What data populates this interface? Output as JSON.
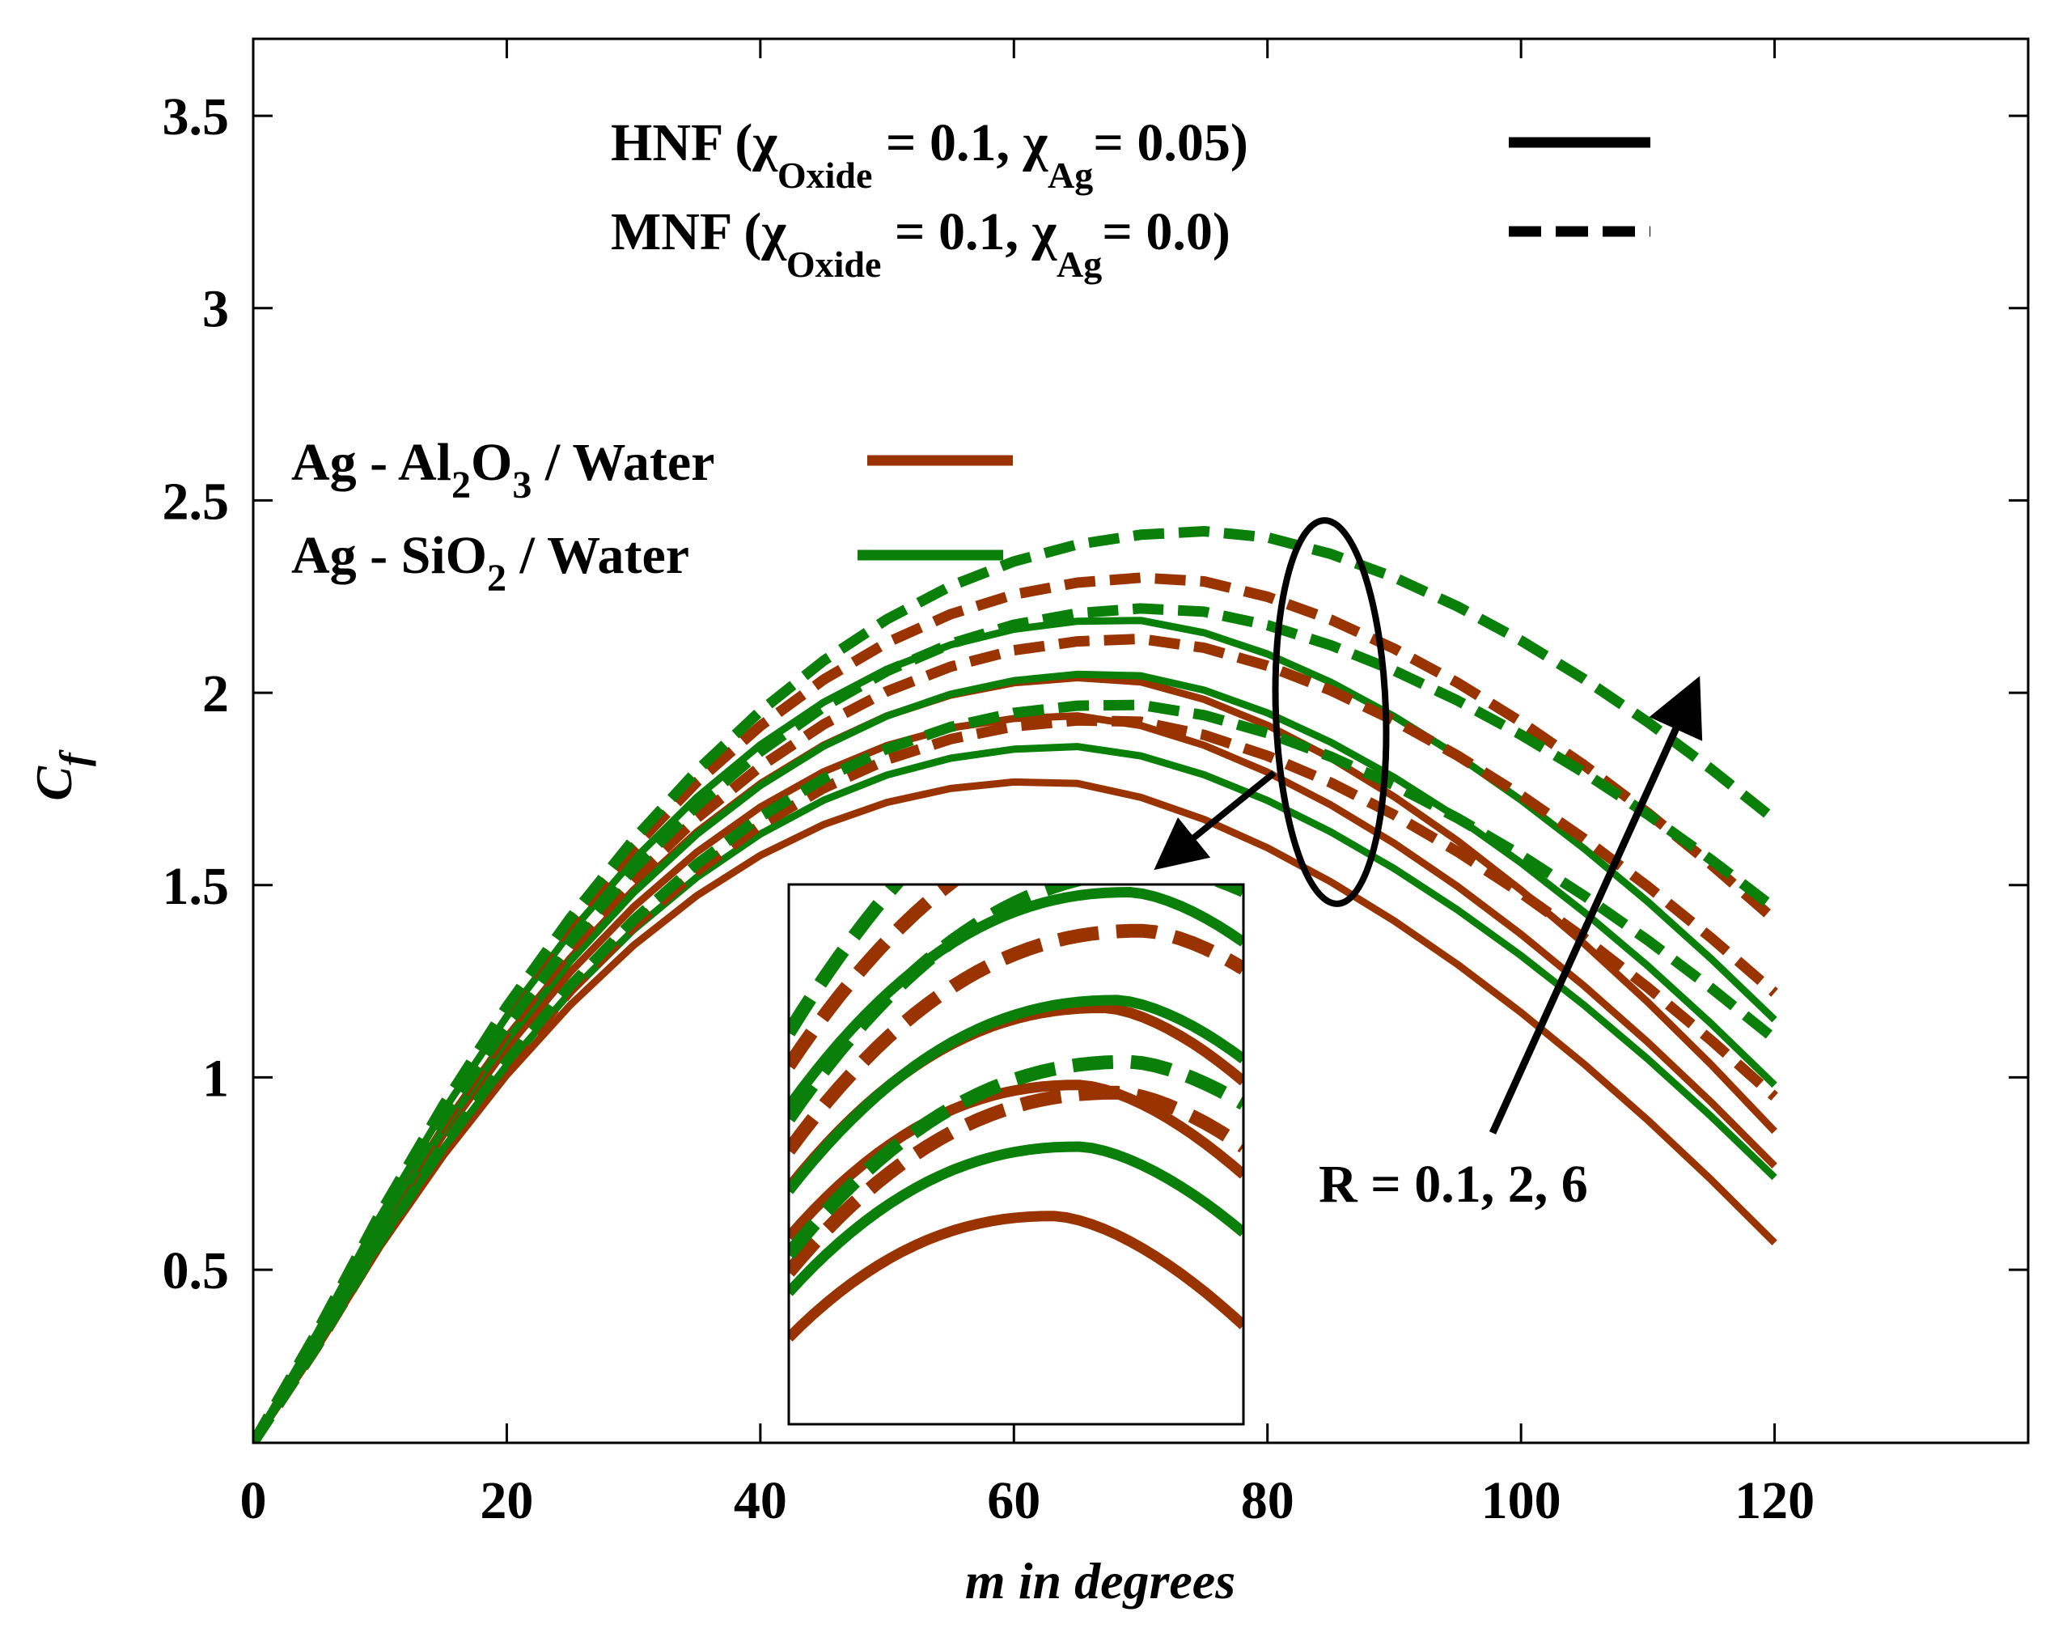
{
  "chart_data": {
    "type": "line",
    "xlabel": "m in degrees",
    "ylabel_main": "C",
    "ylabel_sub": "f",
    "xlim": [
      0,
      140
    ],
    "ylim": [
      0.05,
      3.7
    ],
    "xticks": [
      0,
      20,
      40,
      60,
      80,
      100,
      120
    ],
    "xtick_labels": [
      "0",
      "20",
      "40",
      "60",
      "80",
      "100",
      "120"
    ],
    "yticks": [
      0.5,
      1,
      1.5,
      2,
      2.5,
      3,
      3.5
    ],
    "ytick_labels": [
      "0.5",
      "1",
      "1.5",
      "2",
      "2.5",
      "3",
      "3.5"
    ],
    "colors": {
      "al2o3": "#993300",
      "sio2": "#0a800a",
      "ink": "#000000"
    },
    "legend_style": {
      "hnf": {
        "prefix": "HNF (",
        "chi1": "χ",
        "sub1": "Oxide",
        "mid": " = 0.1, ",
        "chi2": "χ",
        "sub2": "Ag",
        "suffix": "= 0.05)"
      },
      "mnf": {
        "prefix": "MNF (",
        "chi1": "χ",
        "sub1": "Oxide",
        "mid": " = 0.1, ",
        "chi2": "χ",
        "sub2": "Ag",
        "suffix": "= 0.0)"
      }
    },
    "legend_fluid": {
      "al2o3": {
        "a": "Ag - Al",
        "s1": "2",
        "b": "O",
        "s2": "3",
        "c": " / Water"
      },
      "sio2": {
        "a": "Ag - SiO",
        "s1": "2",
        "c": " / Water"
      }
    },
    "annotation": "R = 0.1, 2, 6",
    "x": [
      0,
      5,
      10,
      15,
      20,
      25,
      30,
      35,
      40,
      45,
      50,
      55,
      60,
      65,
      70,
      75,
      80,
      85,
      90,
      95,
      100,
      105,
      110,
      115,
      120
    ],
    "series": [
      {
        "name": "Ag-Al2O3/Water HNF R=0.1",
        "fluid": "al2o3",
        "style": "solid",
        "peak_x": 63,
        "peak_y": 1.77,
        "end_y": 0.57
      },
      {
        "name": "Ag-Al2O3/Water HNF R=2",
        "fluid": "al2o3",
        "style": "solid",
        "peak_x": 65,
        "peak_y": 1.94,
        "end_y": 0.77
      },
      {
        "name": "Ag-Al2O3/Water HNF R=6",
        "fluid": "al2o3",
        "style": "solid",
        "peak_x": 67,
        "peak_y": 2.04,
        "end_y": 0.86
      },
      {
        "name": "Ag-SiO2/Water HNF R=0.1",
        "fluid": "sio2",
        "style": "solid",
        "peak_x": 65,
        "peak_y": 1.86,
        "end_y": 0.74
      },
      {
        "name": "Ag-SiO2/Water HNF R=2",
        "fluid": "sio2",
        "style": "solid",
        "peak_x": 68,
        "peak_y": 2.05,
        "end_y": 0.98
      },
      {
        "name": "Ag-SiO2/Water HNF R=6",
        "fluid": "sio2",
        "style": "solid",
        "peak_x": 69,
        "peak_y": 2.19,
        "end_y": 1.15
      },
      {
        "name": "Ag-Al2O3/Water MNF R=0.1",
        "fluid": "al2o3",
        "style": "dashed",
        "peak_x": 68,
        "peak_y": 1.93,
        "end_y": 0.95
      },
      {
        "name": "Ag-Al2O3/Water MNF R=2",
        "fluid": "al2o3",
        "style": "dashed",
        "peak_x": 70,
        "peak_y": 2.14,
        "end_y": 1.22
      },
      {
        "name": "Ag-Al2O3/Water MNF R=6",
        "fluid": "al2o3",
        "style": "dashed",
        "peak_x": 72,
        "peak_y": 2.3,
        "end_y": 1.41
      },
      {
        "name": "Ag-SiO2/Water MNF R=0.1",
        "fluid": "sio2",
        "style": "dashed",
        "peak_x": 69,
        "peak_y": 1.97,
        "end_y": 1.1
      },
      {
        "name": "Ag-SiO2/Water MNF R=2",
        "fluid": "sio2",
        "style": "dashed",
        "peak_x": 72,
        "peak_y": 2.22,
        "end_y": 1.44
      },
      {
        "name": "Ag-SiO2/Water MNF R=6",
        "fluid": "sio2",
        "style": "dashed",
        "peak_x": 76,
        "peak_y": 2.42,
        "end_y": 1.67
      }
    ],
    "inset": {
      "xlim": [
        42,
        78
      ],
      "ylim": [
        1.5,
        2.2
      ]
    }
  }
}
